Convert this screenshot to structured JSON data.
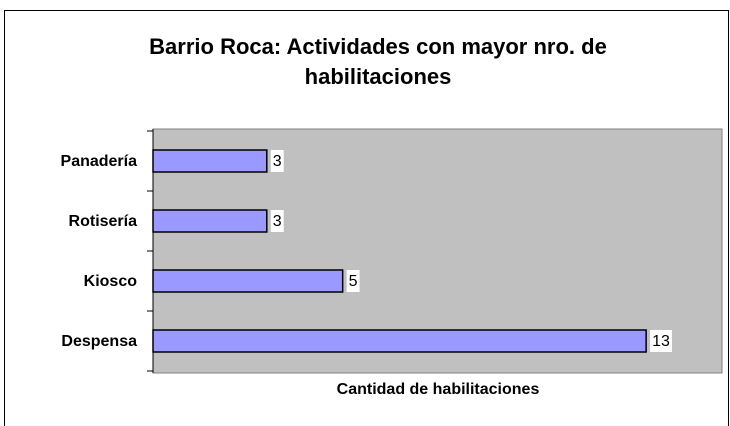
{
  "chart_data": {
    "type": "bar",
    "orientation": "horizontal",
    "title": "Barrio Roca: Actividades con mayor nro. de habilitaciones",
    "x_label": "Cantidad de habilitaciones",
    "categories": [
      "Panadería",
      "Rotisería",
      "Kiosco",
      "Despensa"
    ],
    "values": [
      3,
      3,
      5,
      13
    ],
    "color": "#9999ff",
    "xlim": [
      0,
      15
    ]
  }
}
